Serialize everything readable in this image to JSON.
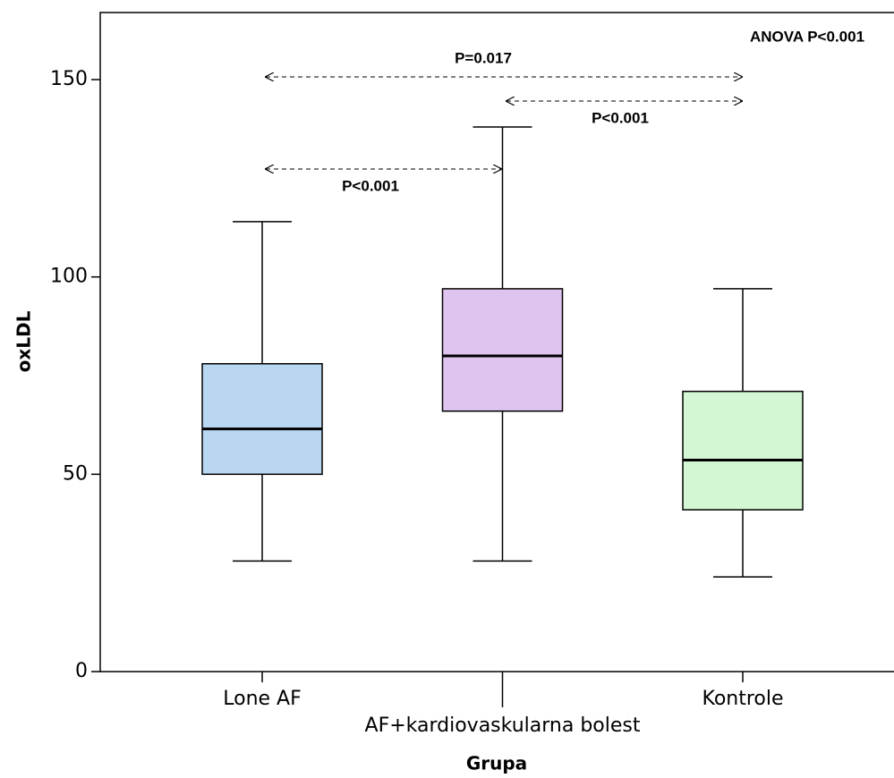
{
  "chart_data": {
    "type": "box",
    "y_label": "oxLDL",
    "x_label": "Grupa",
    "categories": [
      "Lone AF",
      "AF+kardiovaskularna bolest",
      "Kontrole"
    ],
    "colors": [
      "#b9d7f1",
      "#e0c4f0",
      "#d2f7d2"
    ],
    "boxes": [
      {
        "min": 28,
        "q1": 50,
        "median": 61.5,
        "q3": 78,
        "max": 114
      },
      {
        "min": 28,
        "q1": 66,
        "median": 80,
        "q3": 97,
        "max": 138
      },
      {
        "min": 24,
        "q1": 41,
        "median": 53.6,
        "q3": 71,
        "max": 97
      }
    ],
    "ylim": [
      0,
      167
    ],
    "yticks": [
      0,
      50,
      100,
      150
    ],
    "annotations": [
      "ANOVA P<0.001",
      "P=0.017",
      "P<0.001",
      "P<0.001"
    ]
  }
}
